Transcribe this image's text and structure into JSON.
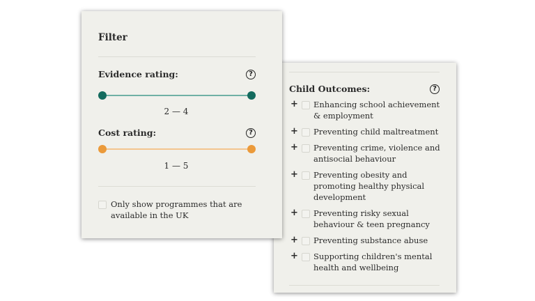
{
  "colors": {
    "evidence": "#146b5e",
    "evidence_track": "#6fb0a4",
    "cost": "#eb9a3a",
    "cost_track": "#f3c58e",
    "panel_bg": "#f0f0eb"
  },
  "filter": {
    "title": "Filter",
    "evidence": {
      "label": "Evidence rating:",
      "help_icon": "?",
      "min": 2,
      "max": 4,
      "range_text": "2 — 4"
    },
    "cost": {
      "label": "Cost rating:",
      "help_icon": "?",
      "min": 1,
      "max": 5,
      "range_text": "1 — 5"
    },
    "uk_only": {
      "label_line1": "Only show programmes that are",
      "label_line2": "available in the UK",
      "checked": false
    }
  },
  "outcomes": {
    "title": "Child Outcomes:",
    "help_icon": "?",
    "items": [
      {
        "lines": [
          "Enhancing school achievement",
          "& employment"
        ],
        "checked": false
      },
      {
        "lines": [
          "Preventing child maltreatment"
        ],
        "checked": false
      },
      {
        "lines": [
          "Preventing crime, violence and",
          "antisocial behaviour"
        ],
        "checked": false
      },
      {
        "lines": [
          "Preventing obesity and",
          "promoting healthy physical",
          "development"
        ],
        "checked": false
      },
      {
        "lines": [
          "Preventing risky sexual",
          "behaviour & teen pregnancy"
        ],
        "checked": false
      },
      {
        "lines": [
          "Preventing substance abuse"
        ],
        "checked": false
      },
      {
        "lines": [
          "Supporting children's mental",
          "health and wellbeing"
        ],
        "checked": false
      }
    ],
    "expand_icon": "+"
  }
}
